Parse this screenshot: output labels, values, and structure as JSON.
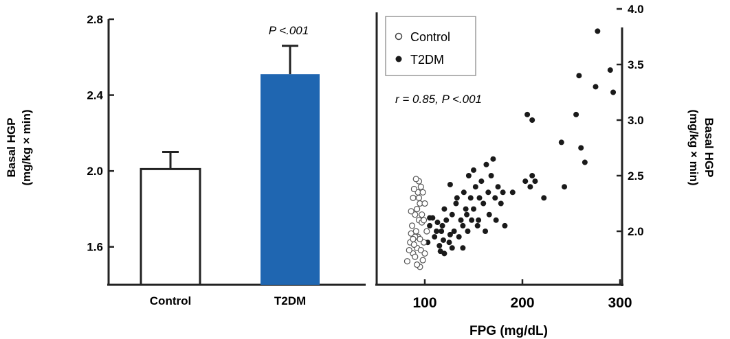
{
  "chart_data": [
    {
      "type": "bar",
      "categories": [
        "Control",
        "T2DM"
      ],
      "values": [
        2.01,
        2.51
      ],
      "error": [
        0.09,
        0.15
      ],
      "ylabel_line1": "Basal HGP",
      "ylabel_line2": "(mg/kg × min)",
      "ylim": [
        1.4,
        2.8
      ],
      "yticks": [
        "1.6",
        "2.0",
        "2.4",
        "2.8"
      ],
      "annotation": "P <.001",
      "bar_colors": [
        "#ffffff",
        "#1f66b1"
      ],
      "grid": false
    },
    {
      "type": "scatter",
      "xlabel": "FPG (mg/dL)",
      "ylabel_line1": "Basal HGP",
      "ylabel_line2": "(mg/kg × min)",
      "xlim": [
        60,
        300
      ],
      "ylim": [
        1.5,
        4.0
      ],
      "xticks": [
        "100",
        "200",
        "300"
      ],
      "yticks": [
        "2.0",
        "2.5",
        "3.0",
        "3.5",
        "4.0"
      ],
      "annotation": "r = 0.85, P <.001",
      "legend": {
        "position": "top-left",
        "entries": [
          "Control",
          "T2DM"
        ]
      },
      "grid": false,
      "series": [
        {
          "name": "Control",
          "marker": "open-circle",
          "points": [
            [
              82,
              1.73
            ],
            [
              88,
              1.8
            ],
            [
              92,
              1.85
            ],
            [
              95,
              1.68
            ],
            [
              90,
              1.77
            ],
            [
              98,
              1.74
            ],
            [
              85,
              1.9
            ],
            [
              93,
              1.95
            ],
            [
              89,
              1.88
            ],
            [
              96,
              1.83
            ],
            [
              100,
              1.8
            ],
            [
              91,
              2.0
            ],
            [
              87,
              2.05
            ],
            [
              94,
              2.1
            ],
            [
              90,
              2.15
            ],
            [
              97,
              2.08
            ],
            [
              92,
              2.2
            ],
            [
              95,
              2.25
            ],
            [
              88,
              2.3
            ],
            [
              93,
              2.35
            ],
            [
              96,
              2.4
            ],
            [
              89,
              2.38
            ],
            [
              94,
              2.45
            ],
            [
              91,
              2.47
            ],
            [
              98,
              2.35
            ],
            [
              100,
              2.25
            ],
            [
              86,
              1.98
            ],
            [
              99,
              1.9
            ],
            [
              84,
              1.83
            ],
            [
              92,
              1.7
            ],
            [
              95,
              1.93
            ],
            [
              90,
              1.95
            ],
            [
              97,
              2.15
            ],
            [
              102,
              2.0
            ],
            [
              88,
              1.93
            ],
            [
              94,
              2.3
            ],
            [
              86,
              2.18
            ],
            [
              99,
              2.1
            ]
          ]
        },
        {
          "name": "T2DM",
          "marker": "filled-circle",
          "points": [
            [
              103,
              1.9
            ],
            [
              105,
              2.05
            ],
            [
              108,
              2.12
            ],
            [
              110,
              1.95
            ],
            [
              112,
              2.0
            ],
            [
              115,
              1.87
            ],
            [
              118,
              2.05
            ],
            [
              120,
              1.8
            ],
            [
              120,
              2.2
            ],
            [
              122,
              2.1
            ],
            [
              125,
              1.9
            ],
            [
              126,
              2.42
            ],
            [
              128,
              2.15
            ],
            [
              130,
              2.0
            ],
            [
              132,
              2.25
            ],
            [
              135,
              1.95
            ],
            [
              137,
              2.1
            ],
            [
              139,
              2.05
            ],
            [
              140,
              2.35
            ],
            [
              142,
              2.2
            ],
            [
              144,
              2.0
            ],
            [
              145,
              2.5
            ],
            [
              147,
              2.3
            ],
            [
              148,
              2.1
            ],
            [
              150,
              2.55
            ],
            [
              150,
              2.2
            ],
            [
              152,
              2.4
            ],
            [
              154,
              2.05
            ],
            [
              156,
              2.3
            ],
            [
              158,
              2.45
            ],
            [
              160,
              2.25
            ],
            [
              162,
              2.0
            ],
            [
              163,
              2.6
            ],
            [
              165,
              2.35
            ],
            [
              166,
              2.15
            ],
            [
              168,
              2.5
            ],
            [
              170,
              2.65
            ],
            [
              172,
              2.3
            ],
            [
              173,
              2.1
            ],
            [
              175,
              2.4
            ],
            [
              178,
              2.25
            ],
            [
              180,
              2.35
            ],
            [
              182,
              2.05
            ],
            [
              190,
              2.35
            ],
            [
              203,
              2.45
            ],
            [
              208,
              2.4
            ],
            [
              210,
              2.5
            ],
            [
              213,
              2.45
            ],
            [
              205,
              3.05
            ],
            [
              210,
              3.0
            ],
            [
              222,
              2.3
            ],
            [
              240,
              2.8
            ],
            [
              243,
              2.4
            ],
            [
              255,
              3.05
            ],
            [
              258,
              3.4
            ],
            [
              260,
              2.75
            ],
            [
              264,
              2.62
            ],
            [
              275,
              3.3
            ],
            [
              277,
              3.8
            ],
            [
              290,
              3.45
            ],
            [
              293,
              3.25
            ],
            [
              105,
              2.12
            ],
            [
              117,
              2.0
            ],
            [
              133,
              2.3
            ],
            [
              143,
              2.15
            ],
            [
              155,
              2.1
            ],
            [
              119,
              1.92
            ],
            [
              139,
              1.85
            ],
            [
              116,
              1.82
            ],
            [
              128,
              1.85
            ],
            [
              126,
              1.97
            ],
            [
              113,
              2.08
            ]
          ]
        }
      ]
    }
  ]
}
